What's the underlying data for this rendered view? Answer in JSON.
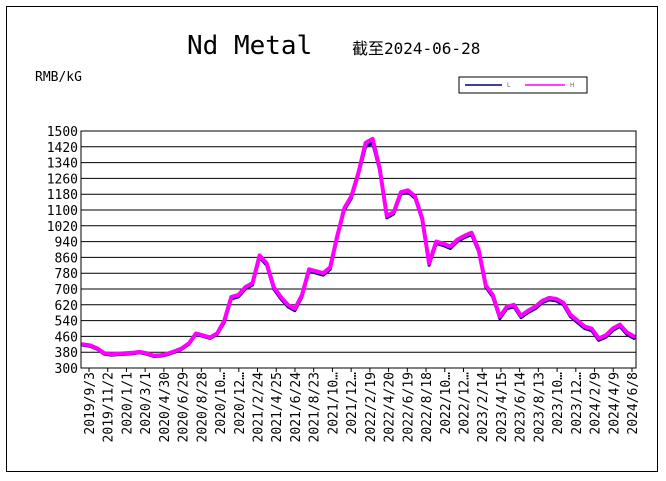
{
  "chart_data": {
    "type": "line",
    "title": "Nd Metal",
    "subtitle": "截至2024-06-28",
    "ylabel": "RMB/kG",
    "ylim": [
      300,
      1500
    ],
    "yticks": [
      1500,
      1420,
      1340,
      1260,
      1180,
      1100,
      1020,
      940,
      860,
      780,
      700,
      620,
      540,
      460,
      380,
      300
    ],
    "x_tick_labels": [
      "2019/9/3",
      "2019/11/2",
      "2020/1/1",
      "2020/3/1",
      "2020/4/30",
      "2020/6/29",
      "2020/8/28",
      "2020/10…",
      "2020/12…",
      "2021/2/24",
      "2021/4/25",
      "2021/6/24",
      "2021/8/23",
      "2021/10…",
      "2021/12…",
      "2022/2/19",
      "2022/4/20",
      "2022/6/19",
      "2022/8/18",
      "2022/10…",
      "2022/12…",
      "2023/2/14",
      "2023/4/15",
      "2023/6/14",
      "2023/8/13",
      "2023/10…",
      "2023/12…",
      "2024/2/9",
      "2024/4/9",
      "2024/6/8"
    ],
    "grid": true,
    "legend_position": "top-right",
    "series": [
      {
        "name": "L",
        "color": "#000080",
        "values": [
          415,
          410,
          395,
          370,
          365,
          368,
          370,
          372,
          378,
          370,
          358,
          360,
          368,
          380,
          395,
          420,
          470,
          460,
          450,
          470,
          530,
          650,
          660,
          700,
          720,
          860,
          820,
          700,
          650,
          610,
          590,
          660,
          790,
          780,
          770,
          800,
          960,
          1100,
          1160,
          1280,
          1420,
          1440,
          1300,
          1060,
          1080,
          1180,
          1190,
          1160,
          1050,
          820,
          930,
          920,
          905,
          940,
          960,
          975,
          890,
          710,
          660,
          550,
          600,
          610,
          555,
          580,
          600,
          630,
          645,
          640,
          620,
          560,
          530,
          500,
          490,
          440,
          455,
          490,
          510,
          470,
          450
        ]
      },
      {
        "name": "H",
        "color": "#ff00ff",
        "values": [
          420,
          415,
          400,
          375,
          370,
          372,
          375,
          377,
          382,
          375,
          363,
          365,
          373,
          385,
          400,
          425,
          475,
          465,
          455,
          475,
          540,
          660,
          670,
          710,
          730,
          870,
          830,
          710,
          660,
          620,
          600,
          670,
          800,
          790,
          780,
          810,
          970,
          1110,
          1170,
          1290,
          1440,
          1460,
          1310,
          1070,
          1090,
          1190,
          1200,
          1170,
          1060,
          830,
          940,
          930,
          915,
          950,
          970,
          985,
          900,
          720,
          670,
          560,
          610,
          620,
          565,
          590,
          610,
          640,
          655,
          650,
          630,
          570,
          540,
          510,
          500,
          450,
          465,
          500,
          520,
          480,
          460
        ]
      }
    ]
  }
}
